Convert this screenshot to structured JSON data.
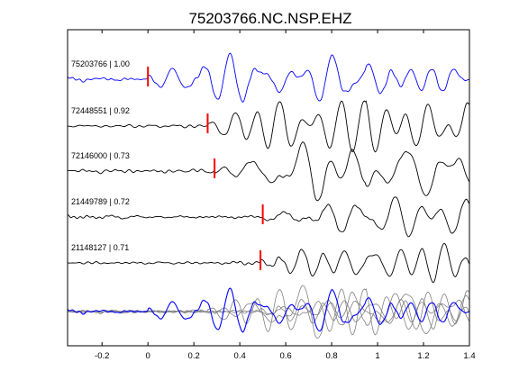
{
  "chart_data": {
    "type": "line",
    "title": "75203766.NC.NSP.EHZ",
    "xlabel": "",
    "ylabel": "",
    "xlim": [
      -0.35,
      1.4
    ],
    "xticks": [
      -0.2,
      0,
      0.2,
      0.4,
      0.6,
      0.8,
      1,
      1.2,
      1.4
    ],
    "xtick_labels": [
      "-0.2",
      "0",
      "0.2",
      "0.4",
      "0.6",
      "0.8",
      "1",
      "1.2",
      "1.4"
    ],
    "grid": false,
    "colors": {
      "reference": "#0000ff",
      "other": "#000000",
      "overlay_other": "#808080",
      "pick": "#ff0000"
    },
    "series": [
      {
        "name": "75203766",
        "correlation": "1.00",
        "label": "75203766 | 1.00",
        "pick_time": 0.0,
        "color": "#0000ff"
      },
      {
        "name": "72448551",
        "correlation": "0.92",
        "label": "72448551 | 0.92",
        "pick_time": 0.26,
        "color": "#000000"
      },
      {
        "name": "72146000",
        "correlation": "0.73",
        "label": "72146000 | 0.73",
        "pick_time": 0.29,
        "color": "#000000"
      },
      {
        "name": "21449789",
        "correlation": "0.72",
        "label": "21449789 | 0.72",
        "pick_time": 0.5,
        "color": "#000000"
      },
      {
        "name": "21148127",
        "correlation": "0.71",
        "label": "21148127 | 0.71",
        "pick_time": 0.49,
        "color": "#000000"
      }
    ],
    "overlay": {
      "description_visible": false
    }
  }
}
